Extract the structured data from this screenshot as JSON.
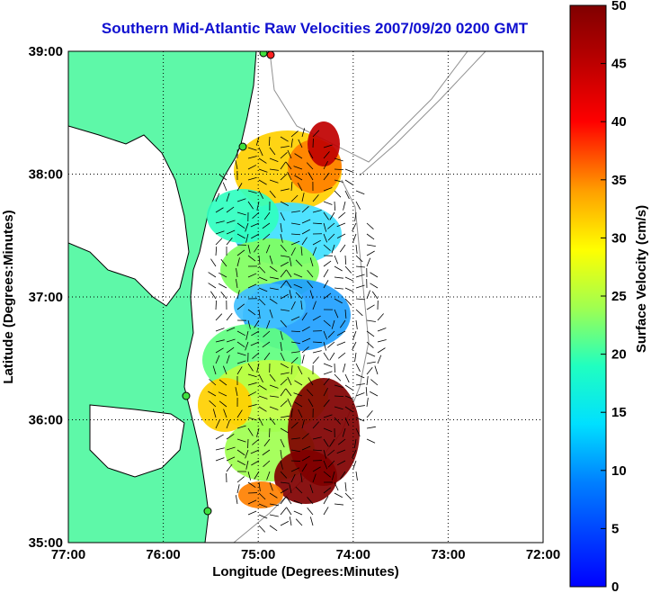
{
  "title": "Southern Mid-Atlantic Raw Velocities 2007/09/20 0200 GMT",
  "x_axis": {
    "label": "Longitude (Degrees:Minutes)",
    "ticks": [
      "77:00",
      "76:00",
      "75:00",
      "74:00",
      "73:00",
      "72:00"
    ],
    "range_deg_west": [
      77,
      72
    ]
  },
  "y_axis": {
    "label": "Latitude (Degrees:Minutes)",
    "ticks": [
      "39:00",
      "38:00",
      "37:00",
      "36:00",
      "35:00"
    ],
    "range_deg_north": [
      35,
      39
    ]
  },
  "colorbar": {
    "label": "Surface Velocity (cm/s)",
    "ticks": [
      "50",
      "45",
      "40",
      "35",
      "30",
      "25",
      "20",
      "15",
      "10",
      "5",
      "0"
    ],
    "range": [
      0,
      50
    ],
    "colors": [
      "#0000ff",
      "#00c8ff",
      "#00ffc0",
      "#a0ff40",
      "#ffff00",
      "#ff8000",
      "#ff0000",
      "#800000"
    ]
  },
  "colors": {
    "title": "#1010d0",
    "land": "#5ef8a8",
    "coast": "#000000",
    "bathymetry": "#909090"
  },
  "grid": true
}
